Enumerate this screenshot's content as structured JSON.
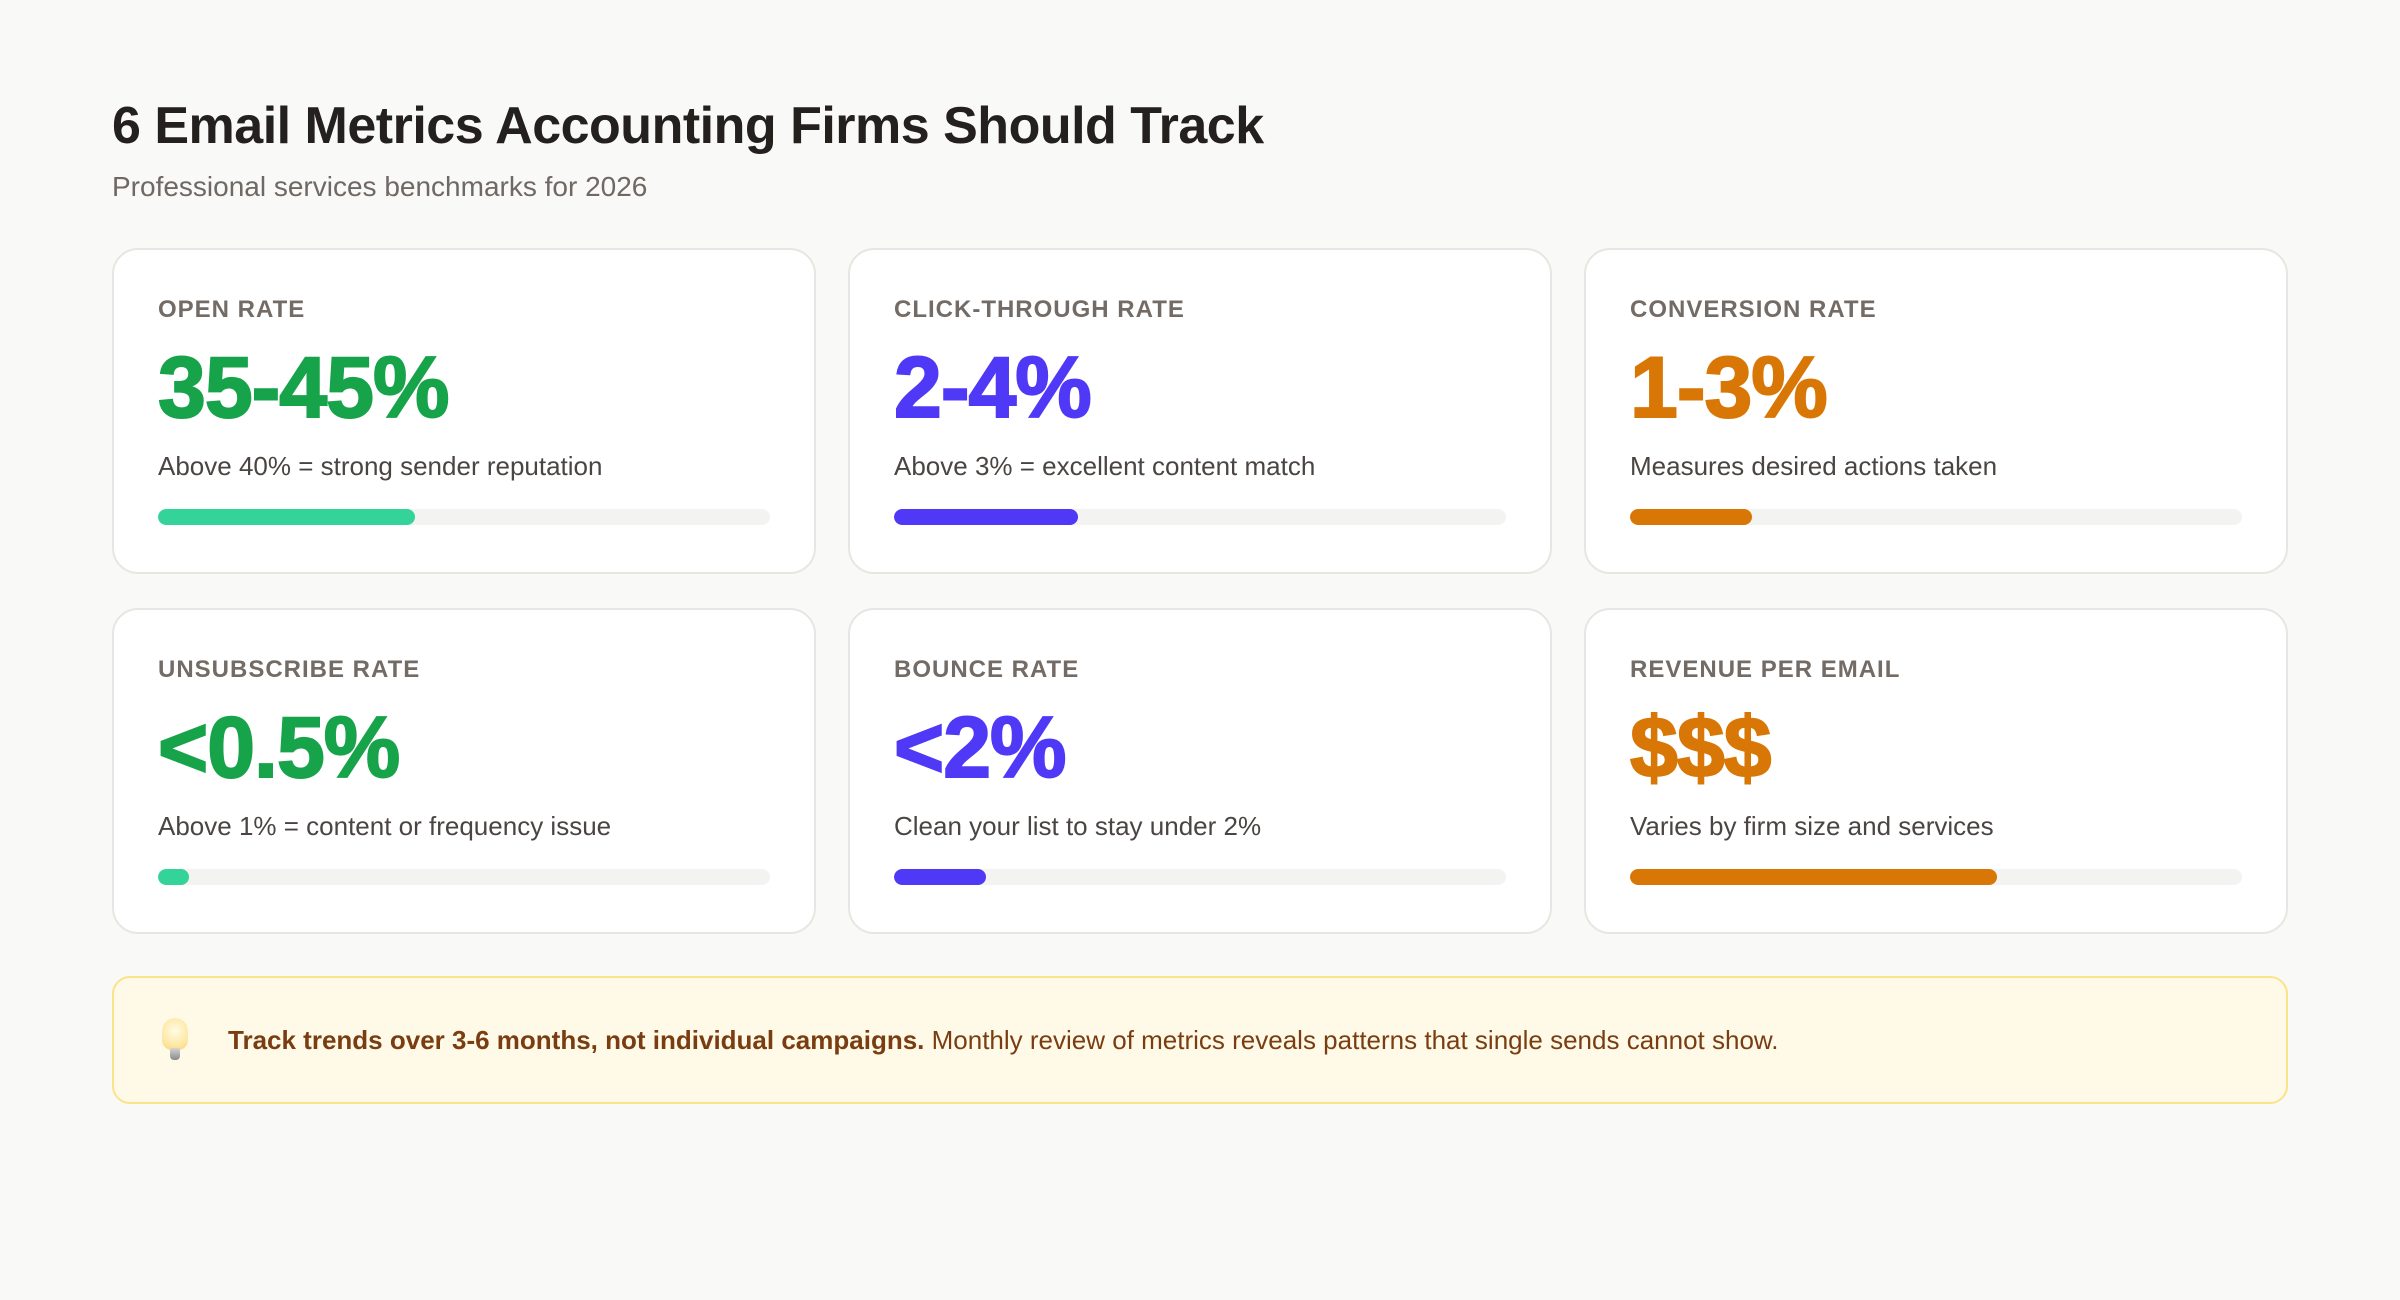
{
  "header": {
    "title": "6 Email Metrics Accounting Firms Should Track",
    "subtitle": "Professional services benchmarks for 2026"
  },
  "colors": {
    "green": "#16a34a",
    "green_bar": "#34d399",
    "indigo": "#4f39f6",
    "orange": "#d97706",
    "track": "#f3f3f2"
  },
  "metrics": [
    {
      "label": "OPEN RATE",
      "value": "35-45%",
      "description": "Above 40% = strong sender reputation",
      "progress": 42,
      "value_color": "#16a34a",
      "bar_color": "#34d399"
    },
    {
      "label": "CLICK-THROUGH RATE",
      "value": "2-4%",
      "description": "Above 3% = excellent content match",
      "progress": 30,
      "value_color": "#4f39f6",
      "bar_color": "#4f39f6"
    },
    {
      "label": "CONVERSION RATE",
      "value": "1-3%",
      "description": "Measures desired actions taken",
      "progress": 20,
      "value_color": "#d97706",
      "bar_color": "#d97706"
    },
    {
      "label": "UNSUBSCRIBE RATE",
      "value": "<0.5%",
      "description": "Above 1% = content or frequency issue",
      "progress": 5,
      "value_color": "#16a34a",
      "bar_color": "#34d399"
    },
    {
      "label": "BOUNCE RATE",
      "value": "<2%",
      "description": "Clean your list to stay under 2%",
      "progress": 15,
      "value_color": "#4f39f6",
      "bar_color": "#4f39f6"
    },
    {
      "label": "REVENUE PER EMAIL",
      "value": "$$$",
      "description": "Varies by firm size and services",
      "progress": 60,
      "value_color": "#d97706",
      "bar_color": "#d97706"
    }
  ],
  "callout": {
    "icon": "lightbulb-icon",
    "bold_text": "Track trends over 3-6 months, not individual campaigns.",
    "text": " Monthly review of metrics reveals patterns that single sends cannot show."
  }
}
